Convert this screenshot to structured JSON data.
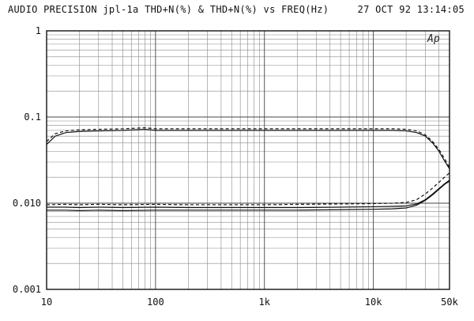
{
  "header": {
    "title": "AUDIO PRECISION jpl-1a THD+N(%) & THD+N(%) vs FREQ(Hz)",
    "timestamp": "27 OCT 92 13:14:05"
  },
  "logo": "Ap",
  "chart_data": {
    "type": "line",
    "title": "AUDIO PRECISION jpl-1a THD+N(%) & THD+N(%) vs FREQ(Hz)",
    "xlabel": "FREQ(Hz)",
    "ylabel": "THD+N(%)",
    "xscale": "log",
    "yscale": "log",
    "xlim": [
      10,
      50000
    ],
    "ylim": [
      0.001,
      1
    ],
    "grid": true,
    "x_ticks": [
      {
        "value": 10,
        "label": "10"
      },
      {
        "value": 100,
        "label": "100"
      },
      {
        "value": 1000,
        "label": "1k"
      },
      {
        "value": 10000,
        "label": "10k"
      },
      {
        "value": 50000,
        "label": "50k"
      }
    ],
    "y_ticks": [
      {
        "value": 1,
        "label": "1"
      },
      {
        "value": 0.1,
        "label": "0.1"
      },
      {
        "value": 0.01,
        "label": "0.010"
      },
      {
        "value": 0.001,
        "label": "0.001"
      }
    ],
    "series": [
      {
        "style": "solid",
        "color": "#111111",
        "x": [
          10,
          12,
          15,
          20,
          30,
          50,
          80,
          100,
          200,
          500,
          1000,
          2000,
          5000,
          10000,
          15000,
          20000,
          25000,
          30000,
          35000,
          40000,
          45000,
          50000
        ],
        "y": [
          0.048,
          0.06,
          0.066,
          0.068,
          0.069,
          0.07,
          0.072,
          0.07,
          0.07,
          0.07,
          0.07,
          0.07,
          0.07,
          0.07,
          0.07,
          0.069,
          0.066,
          0.06,
          0.05,
          0.04,
          0.031,
          0.025
        ]
      },
      {
        "style": "dashed",
        "color": "#111111",
        "x": [
          10,
          12,
          15,
          20,
          30,
          50,
          80,
          100,
          200,
          500,
          1000,
          2000,
          5000,
          10000,
          15000,
          20000,
          25000,
          30000,
          35000,
          40000,
          45000,
          50000
        ],
        "y": [
          0.052,
          0.064,
          0.069,
          0.071,
          0.072,
          0.073,
          0.075,
          0.073,
          0.073,
          0.073,
          0.073,
          0.073,
          0.073,
          0.073,
          0.073,
          0.072,
          0.069,
          0.062,
          0.052,
          0.042,
          0.033,
          0.026
        ]
      },
      {
        "style": "solid",
        "color": "#111111",
        "x": [
          10,
          15,
          20,
          30,
          50,
          100,
          200,
          500,
          1000,
          2000,
          5000,
          10000,
          15000,
          20000,
          25000,
          30000,
          35000,
          40000,
          45000,
          50000
        ],
        "y": [
          0.0083,
          0.0083,
          0.0082,
          0.0083,
          0.0082,
          0.0083,
          0.0083,
          0.0083,
          0.0083,
          0.0083,
          0.0084,
          0.0085,
          0.0086,
          0.0088,
          0.0095,
          0.0108,
          0.0125,
          0.0145,
          0.0165,
          0.018
        ]
      },
      {
        "style": "solid",
        "color": "#111111",
        "x": [
          10,
          15,
          20,
          30,
          50,
          100,
          200,
          500,
          1000,
          2000,
          5000,
          10000,
          15000,
          20000,
          25000,
          30000,
          35000,
          40000,
          45000,
          50000
        ],
        "y": [
          0.009,
          0.009,
          0.0089,
          0.009,
          0.0089,
          0.009,
          0.0089,
          0.0089,
          0.0089,
          0.0089,
          0.009,
          0.0091,
          0.0092,
          0.0093,
          0.0098,
          0.011,
          0.0128,
          0.0148,
          0.0168,
          0.0185
        ]
      },
      {
        "style": "dashed",
        "color": "#111111",
        "x": [
          10,
          15,
          20,
          30,
          50,
          100,
          200,
          500,
          1000,
          2000,
          5000,
          10000,
          15000,
          20000,
          25000,
          30000,
          35000,
          40000,
          45000,
          50000
        ],
        "y": [
          0.0096,
          0.0097,
          0.0096,
          0.0097,
          0.0096,
          0.0097,
          0.0096,
          0.0096,
          0.0096,
          0.0097,
          0.0098,
          0.0099,
          0.01,
          0.0102,
          0.011,
          0.0128,
          0.015,
          0.0175,
          0.02,
          0.0225
        ]
      }
    ]
  }
}
